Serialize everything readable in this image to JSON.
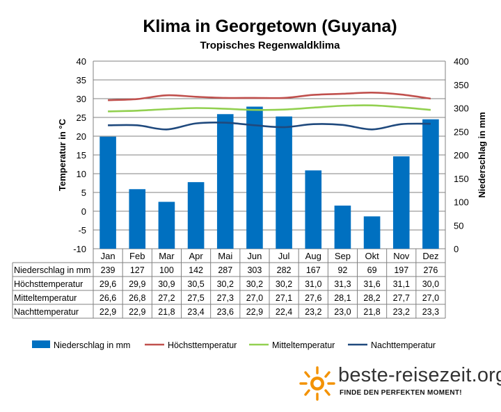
{
  "chart_data": {
    "type": "bar+line",
    "title": "Klima in Georgetown (Guyana)",
    "subtitle": "Tropisches Regenwaldklima",
    "y_left_label": "Temperatur in °C",
    "y_right_label": "Niederschlag in mm",
    "y_left_lim": [
      -10,
      40
    ],
    "y_left_ticks": [
      "-10",
      "-5",
      "0",
      "5",
      "10",
      "15",
      "20",
      "25",
      "30",
      "35",
      "40"
    ],
    "y_right_lim": [
      0,
      400
    ],
    "y_right_ticks": [
      "0",
      "50",
      "100",
      "150",
      "200",
      "250",
      "300",
      "350",
      "400"
    ],
    "categories": [
      "Jan",
      "Feb",
      "Mar",
      "Apr",
      "Mai",
      "Jun",
      "Jul",
      "Aug",
      "Sep",
      "Okt",
      "Nov",
      "Dez"
    ],
    "grid": true,
    "legend_position": "bottom",
    "series": [
      {
        "name": "Niederschlag in mm",
        "type": "bar",
        "axis": "right",
        "color": "#0070C0",
        "values": [
          239,
          127,
          100,
          142,
          287,
          303,
          282,
          167,
          92,
          69,
          197,
          276
        ],
        "labels": [
          "239",
          "127",
          "100",
          "142",
          "287",
          "303",
          "282",
          "167",
          "92",
          "69",
          "197",
          "276"
        ]
      },
      {
        "name": "Höchsttemperatur",
        "type": "line",
        "axis": "left",
        "color": "#C0504D",
        "values": [
          29.6,
          29.9,
          30.9,
          30.5,
          30.2,
          30.2,
          30.2,
          31.0,
          31.3,
          31.6,
          31.1,
          30.0
        ],
        "labels": [
          "29,6",
          "29,9",
          "30,9",
          "30,5",
          "30,2",
          "30,2",
          "30,2",
          "31,0",
          "31,3",
          "31,6",
          "31,1",
          "30,0"
        ]
      },
      {
        "name": "Mitteltemperatur",
        "type": "line",
        "axis": "left",
        "color": "#92D050",
        "values": [
          26.6,
          26.8,
          27.2,
          27.5,
          27.3,
          27.0,
          27.1,
          27.6,
          28.1,
          28.2,
          27.7,
          27.0
        ],
        "labels": [
          "26,6",
          "26,8",
          "27,2",
          "27,5",
          "27,3",
          "27,0",
          "27,1",
          "27,6",
          "28,1",
          "28,2",
          "27,7",
          "27,0"
        ]
      },
      {
        "name": "Nachttemperatur",
        "type": "line",
        "axis": "left",
        "color": "#1F497D",
        "values": [
          22.9,
          22.9,
          21.8,
          23.4,
          23.6,
          22.9,
          22.4,
          23.2,
          23.0,
          21.8,
          23.2,
          23.3
        ],
        "labels": [
          "22,9",
          "22,9",
          "21,8",
          "23,4",
          "23,6",
          "22,9",
          "22,4",
          "23,2",
          "23,0",
          "21,8",
          "23,2",
          "23,3"
        ]
      }
    ]
  },
  "branding": {
    "name": "beste-reisezeit.org",
    "tagline": "FINDE DEN PERFEKTEN MOMENT!",
    "logo_icon": "sun-icon",
    "logo_color": "#F39200"
  }
}
